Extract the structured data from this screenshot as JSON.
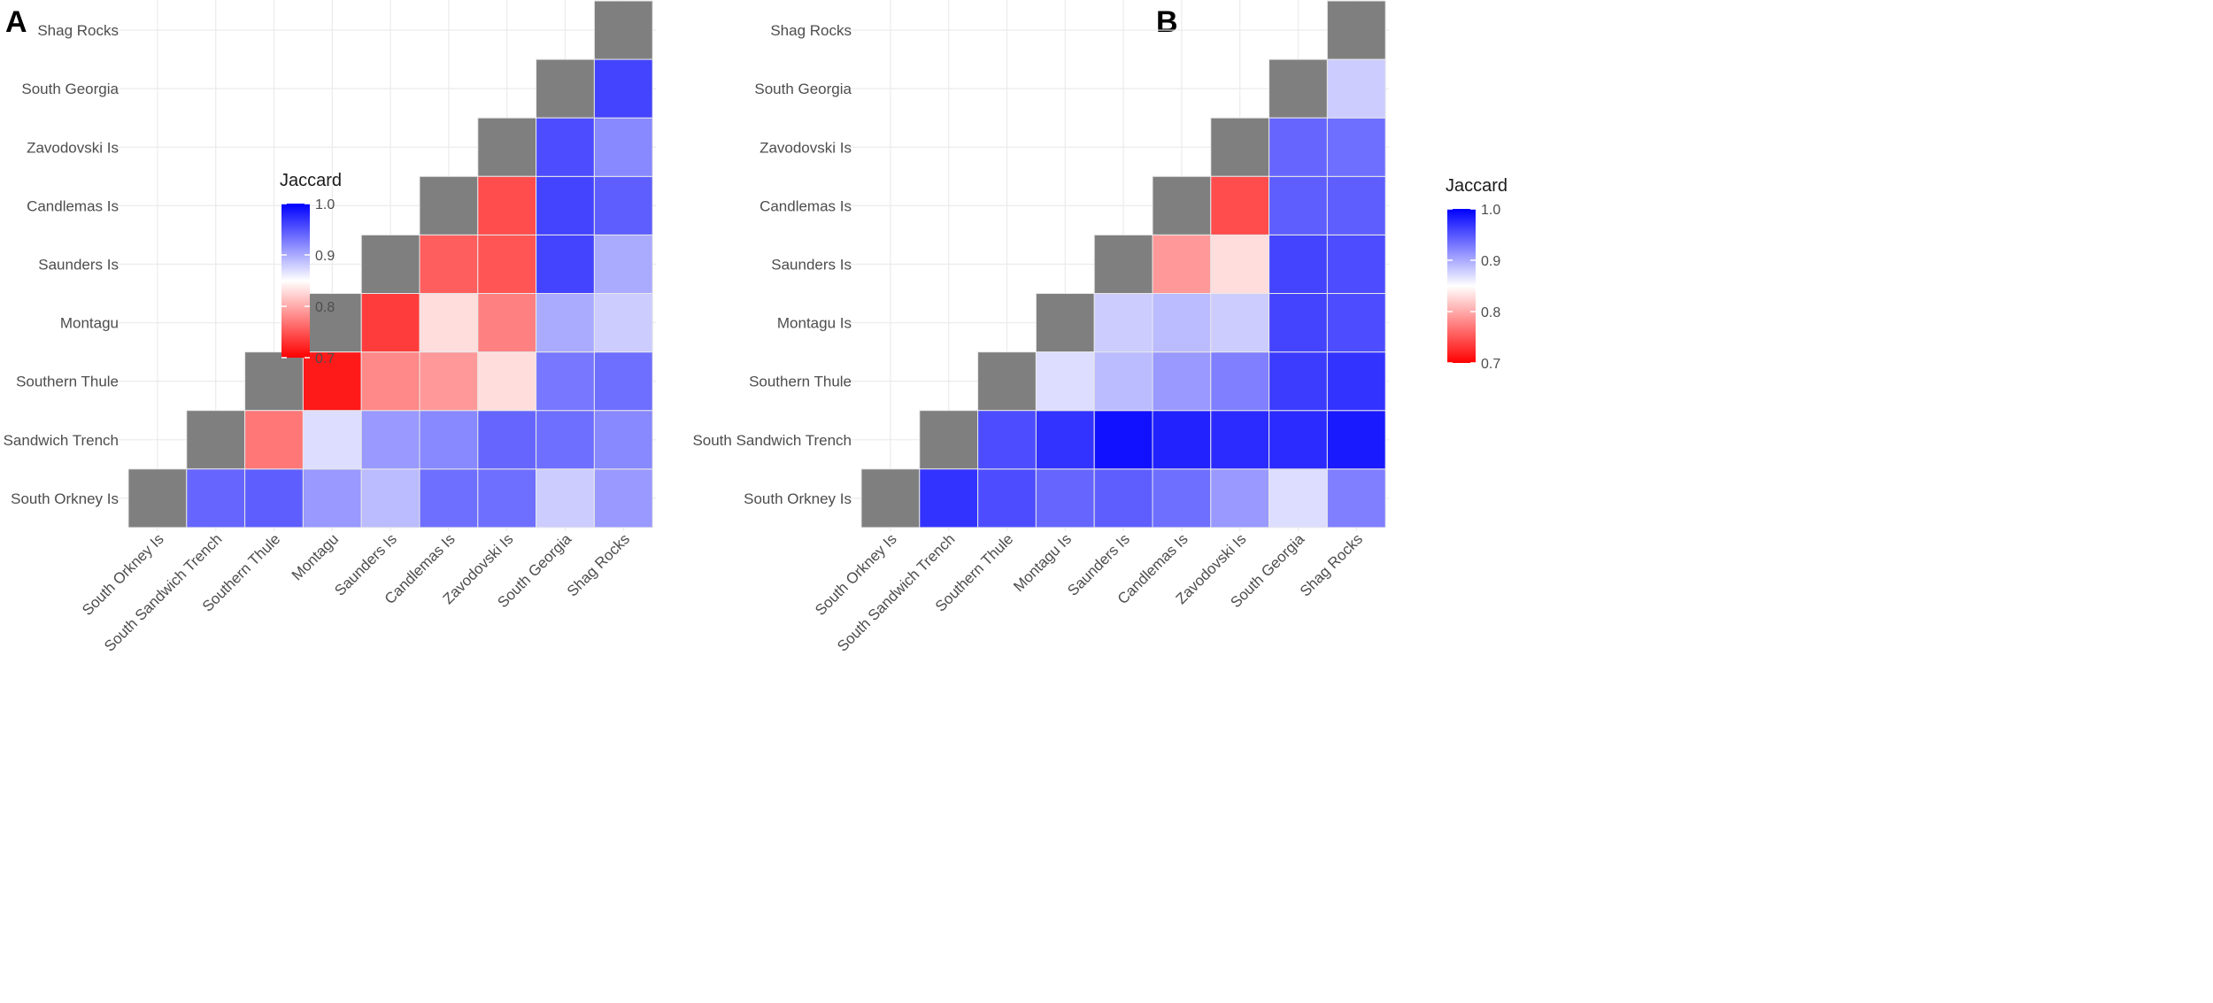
{
  "chart_data": [
    {
      "panel": "A",
      "type": "heatmap",
      "title": "",
      "xlabel": "",
      "ylabel": "",
      "x_categories": [
        "South Orkney Is",
        "South Sandwich Trench",
        "Southern Thule",
        "Montagu",
        "Saunders Is",
        "Candlemas Is",
        "Zavodovski Is",
        "South Georgia",
        "Shag Rocks"
      ],
      "y_categories": [
        "South Orkney Is",
        "South Sandwich Trench",
        "Southern Thule",
        "Montagu",
        "Saunders Is",
        "Candlemas Is",
        "Zavodovski Is",
        "South Georgia",
        "Shag Rocks"
      ],
      "legend": {
        "title": "Jaccard",
        "ticks": [
          "1.0",
          "0.9",
          "0.8",
          "0.7"
        ],
        "range": [
          0.7,
          1.0
        ],
        "placement": "top-left"
      },
      "diagonal": "self-comparison (grey)",
      "cells": [
        {
          "x": "South Sandwich Trench",
          "y": "South Orkney Is",
          "value": 0.94
        },
        {
          "x": "Southern Thule",
          "y": "South Orkney Is",
          "value": 0.945
        },
        {
          "x": "Montagu",
          "y": "South Orkney Is",
          "value": 0.91
        },
        {
          "x": "Saunders Is",
          "y": "South Orkney Is",
          "value": 0.89
        },
        {
          "x": "Candlemas Is",
          "y": "South Orkney Is",
          "value": 0.935
        },
        {
          "x": "Zavodovski Is",
          "y": "South Orkney Is",
          "value": 0.935
        },
        {
          "x": "South Georgia",
          "y": "South Orkney Is",
          "value": 0.88
        },
        {
          "x": "Shag Rocks",
          "y": "South Orkney Is",
          "value": 0.91
        },
        {
          "x": "Southern Thule",
          "y": "South Sandwich Trench",
          "value": 0.77
        },
        {
          "x": "Montagu",
          "y": "South Sandwich Trench",
          "value": 0.87
        },
        {
          "x": "Saunders Is",
          "y": "South Sandwich Trench",
          "value": 0.91
        },
        {
          "x": "Candlemas Is",
          "y": "South Sandwich Trench",
          "value": 0.92
        },
        {
          "x": "Zavodovski Is",
          "y": "South Sandwich Trench",
          "value": 0.94
        },
        {
          "x": "South Georgia",
          "y": "South Sandwich Trench",
          "value": 0.935
        },
        {
          "x": "Shag Rocks",
          "y": "South Sandwich Trench",
          "value": 0.92
        },
        {
          "x": "Montagu",
          "y": "Southern Thule",
          "value": 0.715
        },
        {
          "x": "Saunders Is",
          "y": "Southern Thule",
          "value": 0.78
        },
        {
          "x": "Candlemas Is",
          "y": "Southern Thule",
          "value": 0.79
        },
        {
          "x": "Zavodovski Is",
          "y": "Southern Thule",
          "value": 0.83
        },
        {
          "x": "South Georgia",
          "y": "Southern Thule",
          "value": 0.93
        },
        {
          "x": "Shag Rocks",
          "y": "Southern Thule",
          "value": 0.935
        },
        {
          "x": "Saunders Is",
          "y": "Montagu",
          "value": 0.735
        },
        {
          "x": "Candlemas Is",
          "y": "Montagu",
          "value": 0.83
        },
        {
          "x": "Zavodovski Is",
          "y": "Montagu",
          "value": 0.775
        },
        {
          "x": "South Georgia",
          "y": "Montagu",
          "value": 0.9
        },
        {
          "x": "Shag Rocks",
          "y": "Montagu",
          "value": 0.88
        },
        {
          "x": "Candlemas Is",
          "y": "Saunders Is",
          "value": 0.755
        },
        {
          "x": "Zavodovski Is",
          "y": "Saunders Is",
          "value": 0.75
        },
        {
          "x": "South Georgia",
          "y": "Saunders Is",
          "value": 0.96
        },
        {
          "x": "Shag Rocks",
          "y": "Saunders Is",
          "value": 0.9
        },
        {
          "x": "Zavodovski Is",
          "y": "Candlemas Is",
          "value": 0.745
        },
        {
          "x": "South Georgia",
          "y": "Candlemas Is",
          "value": 0.96
        },
        {
          "x": "Shag Rocks",
          "y": "Candlemas Is",
          "value": 0.945
        },
        {
          "x": "South Georgia",
          "y": "Zavodovski Is",
          "value": 0.955
        },
        {
          "x": "Shag Rocks",
          "y": "Zavodovski Is",
          "value": 0.92
        },
        {
          "x": "Shag Rocks",
          "y": "South Georgia",
          "value": 0.96
        }
      ]
    },
    {
      "panel": "B",
      "type": "heatmap",
      "title": "",
      "xlabel": "",
      "ylabel": "",
      "x_categories": [
        "South Orkney Is",
        "South Sandwich Trench",
        "Southern Thule",
        "Montagu Is",
        "Saunders Is",
        "Candlemas Is",
        "Zavodovski Is",
        "South Georgia",
        "Shag Rocks"
      ],
      "y_categories": [
        "South Orkney Is",
        "South Sandwich Trench",
        "Southern Thule",
        "Montagu Is",
        "Saunders Is",
        "Candlemas Is",
        "Zavodovski Is",
        "South Georgia",
        "Shag Rocks"
      ],
      "legend": {
        "title": "Jaccard",
        "ticks": [
          "1.0",
          "0.9",
          "0.8",
          "0.7"
        ],
        "range": [
          0.7,
          1.0
        ],
        "placement": "top-left"
      },
      "diagonal": "self-comparison (grey)",
      "cells": [
        {
          "x": "South Sandwich Trench",
          "y": "South Orkney Is",
          "value": 0.97
        },
        {
          "x": "Southern Thule",
          "y": "South Orkney Is",
          "value": 0.955
        },
        {
          "x": "Montagu Is",
          "y": "South Orkney Is",
          "value": 0.94
        },
        {
          "x": "Saunders Is",
          "y": "South Orkney Is",
          "value": 0.945
        },
        {
          "x": "Candlemas Is",
          "y": "South Orkney Is",
          "value": 0.935
        },
        {
          "x": "Zavodovski Is",
          "y": "South Orkney Is",
          "value": 0.91
        },
        {
          "x": "South Georgia",
          "y": "South Orkney Is",
          "value": 0.87
        },
        {
          "x": "Shag Rocks",
          "y": "South Orkney Is",
          "value": 0.925
        },
        {
          "x": "Southern Thule",
          "y": "South Sandwich Trench",
          "value": 0.955
        },
        {
          "x": "Montagu Is",
          "y": "South Sandwich Trench",
          "value": 0.97
        },
        {
          "x": "Saunders Is",
          "y": "South Sandwich Trench",
          "value": 0.99
        },
        {
          "x": "Candlemas Is",
          "y": "South Sandwich Trench",
          "value": 0.98
        },
        {
          "x": "Zavodovski Is",
          "y": "South Sandwich Trench",
          "value": 0.975
        },
        {
          "x": "South Georgia",
          "y": "South Sandwich Trench",
          "value": 0.975
        },
        {
          "x": "Shag Rocks",
          "y": "South Sandwich Trench",
          "value": 0.985
        },
        {
          "x": "Montagu Is",
          "y": "Southern Thule",
          "value": 0.87
        },
        {
          "x": "Saunders Is",
          "y": "Southern Thule",
          "value": 0.89
        },
        {
          "x": "Candlemas Is",
          "y": "Southern Thule",
          "value": 0.91
        },
        {
          "x": "Zavodovski Is",
          "y": "Southern Thule",
          "value": 0.925
        },
        {
          "x": "South Georgia",
          "y": "Southern Thule",
          "value": 0.965
        },
        {
          "x": "Shag Rocks",
          "y": "Southern Thule",
          "value": 0.97
        },
        {
          "x": "Saunders Is",
          "y": "Montagu Is",
          "value": 0.88
        },
        {
          "x": "Candlemas Is",
          "y": "Montagu Is",
          "value": 0.89
        },
        {
          "x": "Zavodovski Is",
          "y": "Montagu Is",
          "value": 0.88
        },
        {
          "x": "South Georgia",
          "y": "Montagu Is",
          "value": 0.96
        },
        {
          "x": "Shag Rocks",
          "y": "Montagu Is",
          "value": 0.955
        },
        {
          "x": "Candlemas Is",
          "y": "Saunders Is",
          "value": 0.79
        },
        {
          "x": "Zavodovski Is",
          "y": "Saunders Is",
          "value": 0.83
        },
        {
          "x": "South Georgia",
          "y": "Saunders Is",
          "value": 0.96
        },
        {
          "x": "Shag Rocks",
          "y": "Saunders Is",
          "value": 0.955
        },
        {
          "x": "Zavodovski Is",
          "y": "Candlemas Is",
          "value": 0.745
        },
        {
          "x": "South Georgia",
          "y": "Candlemas Is",
          "value": 0.945
        },
        {
          "x": "Shag Rocks",
          "y": "Candlemas Is",
          "value": 0.945
        },
        {
          "x": "South Georgia",
          "y": "Zavodovski Is",
          "value": 0.94
        },
        {
          "x": "Shag Rocks",
          "y": "Zavodovski Is",
          "value": 0.935
        },
        {
          "x": "Shag Rocks",
          "y": "South Georgia",
          "value": 0.88
        }
      ]
    }
  ],
  "colors": {
    "low": "#ff0000",
    "mid": "#ffffff",
    "high": "#0000ff",
    "diagonal": "#7f7f7f",
    "grid": "#ebebeb",
    "tile_border": "#e8e8e8"
  }
}
